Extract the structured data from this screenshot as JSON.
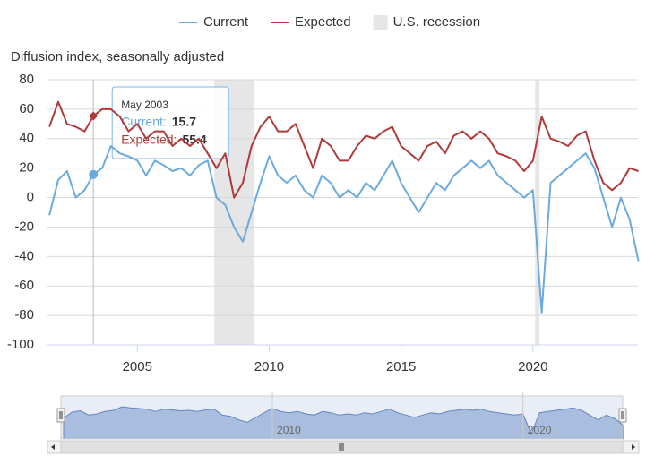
{
  "chart_data": {
    "type": "line",
    "y_label": "Diffusion index, seasonally adjusted",
    "x": [
      2001.667,
      2002,
      2002.333,
      2002.667,
      2003,
      2003.333,
      2003.667,
      2004,
      2004.333,
      2004.667,
      2005,
      2005.333,
      2005.667,
      2006,
      2006.333,
      2006.667,
      2007,
      2007.333,
      2007.667,
      2008,
      2008.333,
      2008.667,
      2009,
      2009.333,
      2009.667,
      2010,
      2010.333,
      2010.667,
      2011,
      2011.333,
      2011.667,
      2012,
      2012.333,
      2012.667,
      2013,
      2013.333,
      2013.667,
      2014,
      2014.333,
      2014.667,
      2015,
      2015.333,
      2015.667,
      2016,
      2016.333,
      2016.667,
      2017,
      2017.333,
      2017.667,
      2018,
      2018.333,
      2018.667,
      2019,
      2019.333,
      2019.667,
      2020,
      2020.333,
      2020.667,
      2021,
      2021.333,
      2021.667,
      2022,
      2022.333,
      2022.667,
      2023,
      2023.333,
      2023.667,
      2024
    ],
    "series": [
      {
        "name": "Current",
        "color": "#6aaade",
        "values": [
          -12,
          12,
          18,
          0,
          5,
          15.7,
          20,
          35,
          30,
          28,
          25,
          15,
          25,
          22,
          18,
          20,
          15,
          22,
          25,
          0,
          -5,
          -20,
          -30,
          -10,
          10,
          28,
          15,
          10,
          15,
          5,
          0,
          15,
          10,
          0,
          5,
          0,
          10,
          5,
          15,
          25,
          10,
          0,
          -10,
          0,
          10,
          5,
          15,
          20,
          25,
          20,
          25,
          15,
          10,
          5,
          0,
          5,
          -78,
          10,
          15,
          20,
          25,
          30,
          20,
          0,
          -20,
          0,
          -15,
          -43
        ]
      },
      {
        "name": "Expected",
        "color": "#b03a3a",
        "values": [
          48,
          65,
          50,
          48,
          45,
          55.4,
          60,
          60,
          55,
          45,
          50,
          40,
          45,
          45,
          35,
          40,
          35,
          40,
          30,
          20,
          30,
          0,
          10,
          35,
          48,
          55,
          45,
          45,
          50,
          35,
          20,
          40,
          35,
          25,
          25,
          35,
          42,
          40,
          45,
          48,
          35,
          30,
          25,
          35,
          38,
          30,
          42,
          45,
          40,
          45,
          40,
          30,
          28,
          25,
          18,
          25,
          55,
          40,
          38,
          35,
          42,
          45,
          25,
          10,
          5,
          10,
          20,
          18
        ]
      }
    ],
    "recession": {
      "name": "U.S. recession",
      "color": "#e6e6e6",
      "ranges": [
        [
          2007.917,
          2009.417
        ],
        [
          2020.083,
          2020.25
        ]
      ]
    },
    "xlim": [
      2001.56,
      2023.98
    ],
    "xticks": [
      2005,
      2010,
      2015,
      2020
    ],
    "ylim": [
      -100,
      80
    ],
    "yticks": [
      -100,
      -80,
      -60,
      -40,
      -20,
      0,
      20,
      40,
      60,
      80
    ],
    "grid": true,
    "legend": "top",
    "tooltip": {
      "index": 5,
      "header": "May 2003",
      "items": [
        "Current:",
        "Expected:"
      ]
    },
    "navigator": {
      "xticks": [
        2010,
        2020
      ]
    }
  }
}
